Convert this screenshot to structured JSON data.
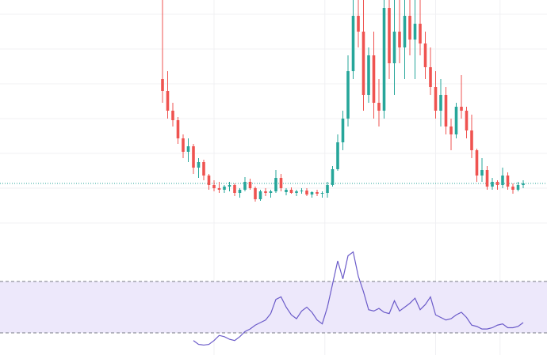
{
  "chart_data": [
    {
      "type": "candlestick",
      "up_color": "#26a69a",
      "down_color": "#ef5350",
      "grid": true,
      "last_price_line": true,
      "xlim": [
        0,
        70
      ],
      "ylim": [
        0,
        300
      ],
      "xticks": [
        10,
        31.5,
        53,
        65.5
      ],
      "yticks": [
        18,
        62,
        106,
        150,
        194,
        238,
        282
      ],
      "open": [
        200,
        185,
        160,
        148,
        125,
        108,
        115,
        88,
        95,
        78,
        66,
        62,
        60,
        64,
        66,
        56,
        60,
        70,
        62,
        48,
        58,
        56,
        58,
        75,
        57,
        60,
        56,
        58,
        59,
        54,
        57,
        55,
        56,
        66,
        86,
        120,
        150,
        210,
        280,
        260,
        180,
        230,
        170,
        160,
        290,
        220,
        260,
        240,
        280,
        250,
        270,
        245,
        215,
        190,
        160,
        180,
        140,
        130,
        165,
        160,
        135,
        110,
        78,
        85,
        64,
        70,
        66,
        78,
        64,
        60,
        66
      ],
      "high": [
        300,
        210,
        170,
        152,
        130,
        125,
        118,
        100,
        98,
        80,
        72,
        70,
        66,
        70,
        68,
        62,
        76,
        74,
        64,
        60,
        62,
        60,
        85,
        80,
        62,
        63,
        60,
        62,
        62,
        58,
        60,
        58,
        70,
        90,
        130,
        160,
        230,
        300,
        300,
        300,
        240,
        260,
        200,
        300,
        300,
        300,
        300,
        300,
        300,
        300,
        300,
        260,
        240,
        210,
        200,
        190,
        150,
        170,
        205,
        165,
        155,
        112,
        100,
        90,
        75,
        72,
        88,
        82,
        68,
        70,
        72
      ],
      "low": [
        170,
        150,
        140,
        118,
        100,
        95,
        80,
        75,
        72,
        60,
        58,
        56,
        56,
        58,
        52,
        50,
        58,
        60,
        45,
        46,
        52,
        50,
        56,
        58,
        53,
        55,
        52,
        55,
        52,
        50,
        52,
        50,
        50,
        64,
        84,
        110,
        140,
        200,
        240,
        160,
        170,
        150,
        140,
        150,
        200,
        180,
        220,
        200,
        230,
        200,
        230,
        200,
        180,
        150,
        140,
        130,
        110,
        125,
        150,
        125,
        100,
        70,
        70,
        60,
        60,
        60,
        62,
        60,
        55,
        58,
        62
      ],
      "close": [
        185,
        160,
        148,
        125,
        108,
        115,
        88,
        95,
        78,
        66,
        62,
        60,
        64,
        66,
        56,
        60,
        70,
        62,
        48,
        58,
        56,
        58,
        75,
        62,
        60,
        56,
        58,
        59,
        54,
        57,
        55,
        56,
        66,
        86,
        120,
        150,
        210,
        280,
        260,
        180,
        230,
        170,
        160,
        290,
        220,
        260,
        240,
        280,
        250,
        270,
        245,
        215,
        190,
        160,
        180,
        140,
        130,
        165,
        160,
        135,
        110,
        78,
        85,
        64,
        70,
        66,
        78,
        64,
        60,
        66,
        68
      ],
      "last_line_color": "#26a69a"
    },
    {
      "type": "line",
      "color": "#6b5bc9",
      "band_color": "#ede8fb",
      "xlim": [
        0,
        70
      ],
      "ylim": [
        13,
        100
      ],
      "levels": [
        30,
        70
      ],
      "values": [
        null,
        null,
        null,
        null,
        null,
        null,
        24,
        21,
        20.5,
        21,
        24,
        28,
        27,
        25,
        24,
        27,
        31,
        33,
        36,
        38,
        40,
        45,
        56,
        58,
        50,
        44,
        41,
        47,
        50,
        46,
        40,
        37,
        50,
        68,
        86,
        72,
        90,
        93,
        74,
        62,
        48,
        47,
        49,
        46,
        45,
        55,
        47,
        50,
        53,
        57,
        48,
        52,
        58,
        44,
        42,
        40,
        41,
        44,
        46,
        42,
        36,
        35,
        33,
        33,
        34,
        36,
        37,
        34,
        34,
        35,
        38
      ]
    }
  ]
}
